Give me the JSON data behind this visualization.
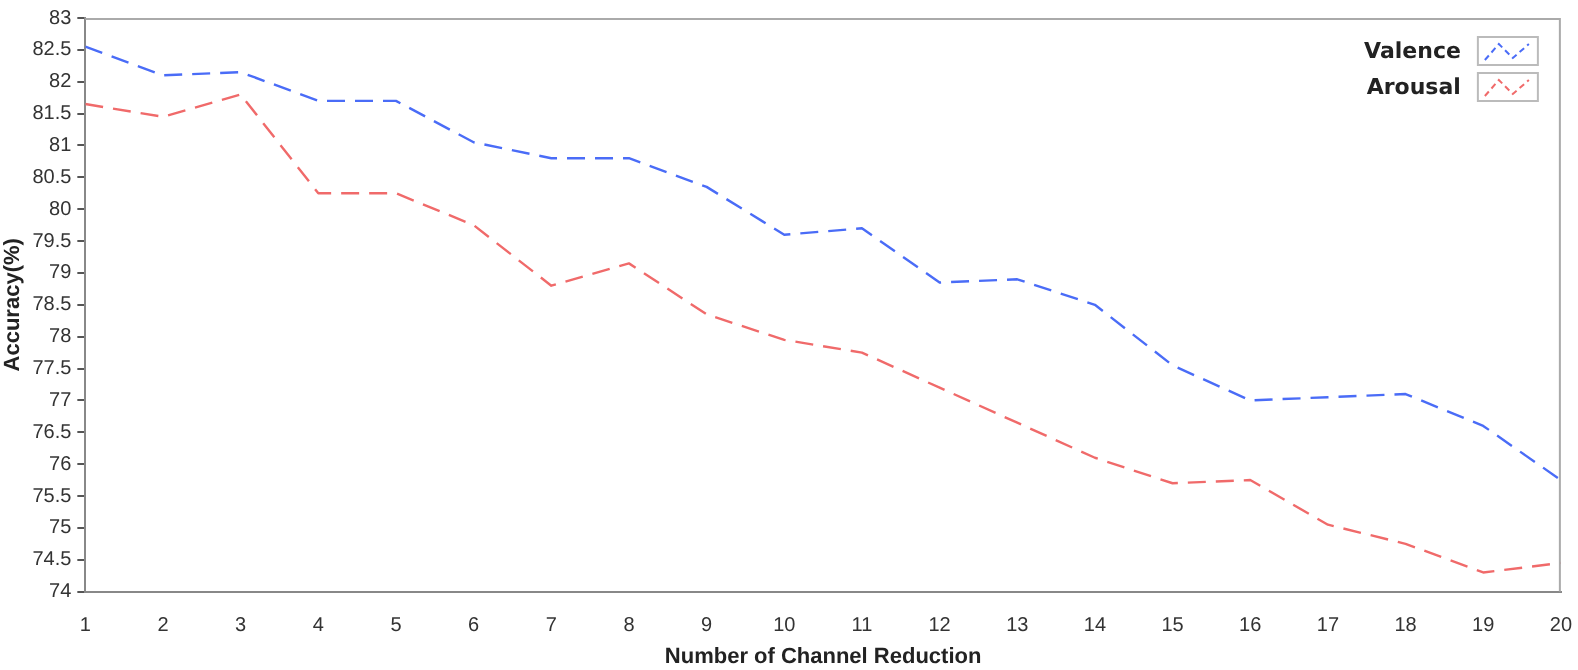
{
  "chart_data": {
    "type": "line",
    "xlabel": "Number of Channel Reduction",
    "ylabel": "Accuracy(%)",
    "x": [
      1,
      2,
      3,
      4,
      5,
      6,
      7,
      8,
      9,
      10,
      11,
      12,
      13,
      14,
      15,
      16,
      17,
      18,
      19,
      20
    ],
    "xlim": [
      1,
      20
    ],
    "xticks": [
      1,
      2,
      3,
      4,
      5,
      6,
      7,
      8,
      9,
      10,
      11,
      12,
      13,
      14,
      15,
      16,
      17,
      18,
      19,
      20
    ],
    "ylim": [
      74,
      83
    ],
    "yticks": [
      74,
      74.5,
      75,
      75.5,
      76,
      76.5,
      77,
      77.5,
      78,
      78.5,
      79,
      79.5,
      80,
      80.5,
      81,
      81.5,
      82,
      82.5,
      83
    ],
    "series": [
      {
        "name": "Valence",
        "color": "#4a6cf7",
        "values": [
          82.55,
          82.1,
          82.15,
          81.7,
          81.7,
          81.05,
          80.8,
          80.8,
          80.35,
          79.6,
          79.7,
          78.85,
          78.9,
          78.5,
          77.55,
          77.0,
          77.05,
          77.1,
          76.6,
          75.75
        ]
      },
      {
        "name": "Arousal",
        "color": "#f06a6a",
        "values": [
          81.65,
          81.45,
          81.8,
          80.25,
          80.25,
          79.75,
          78.8,
          79.15,
          78.35,
          77.95,
          77.75,
          77.2,
          76.65,
          76.1,
          75.7,
          75.75,
          75.05,
          74.75,
          74.3,
          74.45
        ]
      }
    ],
    "grid": false,
    "legend": "top right",
    "marker": "none",
    "line_style": "dashed"
  }
}
